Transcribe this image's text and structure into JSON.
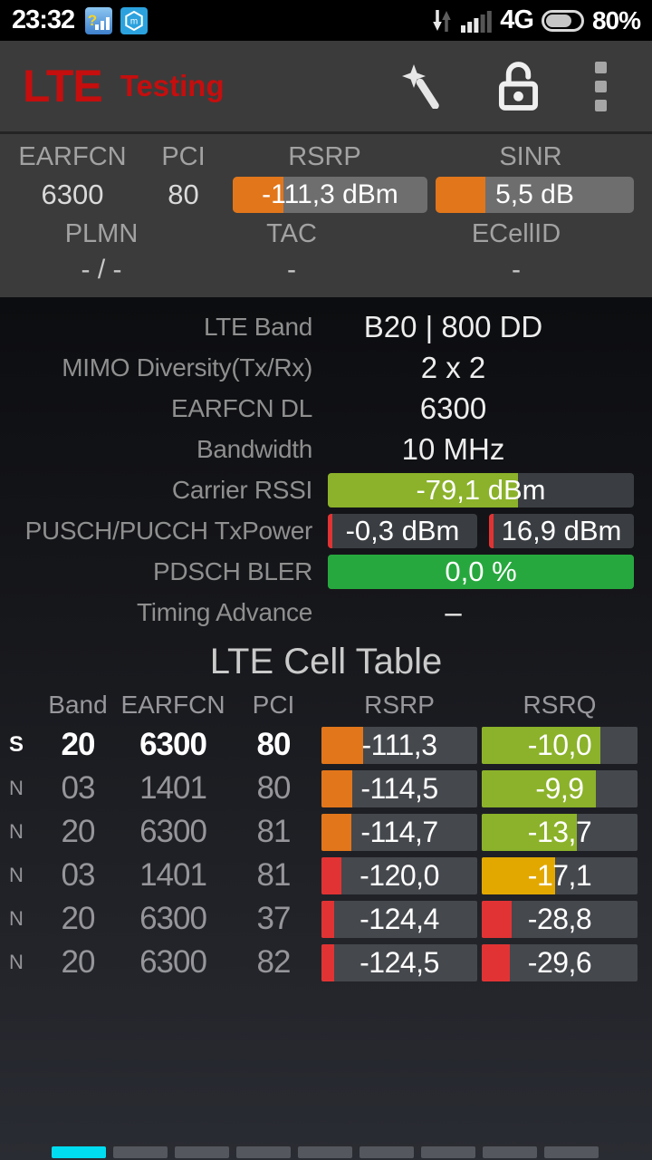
{
  "status_bar": {
    "time": "23:32",
    "network_type": "4G",
    "battery_percent": "80%",
    "battery_level": 76,
    "signal_bars_filled": 3,
    "signal_bars_total": 5,
    "notification_icons": [
      "network-cell-info",
      "mi-security"
    ]
  },
  "app_bar": {
    "title": "LTE",
    "subtitle": "Testing",
    "title_color": "#c50e0e",
    "actions": [
      "wand",
      "unlock",
      "overflow-menu"
    ]
  },
  "serving_panel": {
    "headers_row1": {
      "earfcn": "EARFCN",
      "pci": "PCI",
      "rsrp": "RSRP",
      "sinr": "SINR"
    },
    "earfcn": "6300",
    "pci": "80",
    "rsrp": {
      "text": "-111,3 dBm",
      "fill": 26,
      "color": "#e2761b"
    },
    "sinr": {
      "text": "5,5 dB",
      "fill": 25,
      "color": "#e2761b"
    },
    "headers_row2": {
      "plmn": "PLMN",
      "tac": "TAC",
      "ecellid": "ECellID"
    },
    "plmn": "- / -",
    "tac": "-",
    "ecellid": "-"
  },
  "details": {
    "rows": [
      {
        "label": "LTE Band",
        "type": "text",
        "value": "B20 | 800 DD"
      },
      {
        "label": "MIMO Diversity(Tx/Rx)",
        "type": "text",
        "value": "2 x 2"
      },
      {
        "label": "EARFCN DL",
        "type": "text",
        "value": "6300"
      },
      {
        "label": "Bandwidth",
        "type": "text",
        "value": "10 MHz"
      },
      {
        "label": "Carrier RSSI",
        "type": "bar",
        "value": "-79,1 dBm",
        "fill": 62,
        "color": "#8bb22a"
      },
      {
        "label": "PUSCH/PUCCH TxPower",
        "type": "dualbar",
        "values": [
          "-0,3 dBm",
          "16,9 dBm"
        ],
        "fills": [
          3,
          3
        ],
        "color": "#e23334"
      },
      {
        "label": "PDSCH BLER",
        "type": "bar",
        "value": "0,0 %",
        "fill": 100,
        "color": "#27a83e"
      },
      {
        "label": "Timing Advance",
        "type": "text",
        "value": "–"
      }
    ]
  },
  "cell_table": {
    "title": "LTE Cell Table",
    "headers": [
      "Band",
      "EARFCN",
      "PCI",
      "RSRP",
      "RSRQ"
    ],
    "rows": [
      {
        "flag": "S",
        "serving": true,
        "band": "20",
        "earfcn": "6300",
        "pci": "80",
        "rsrp": "-111,3",
        "rsrp_fill": 27,
        "rsrp_color": "#e2761b",
        "rsrq": "-10,0",
        "rsrq_fill": 76,
        "rsrq_color": "#8bb22a"
      },
      {
        "flag": "N",
        "serving": false,
        "band": "03",
        "earfcn": "1401",
        "pci": "80",
        "rsrp": "-114,5",
        "rsrp_fill": 20,
        "rsrp_color": "#e2761b",
        "rsrq": "-9,9",
        "rsrq_fill": 73,
        "rsrq_color": "#8bb22a"
      },
      {
        "flag": "N",
        "serving": false,
        "band": "20",
        "earfcn": "6300",
        "pci": "81",
        "rsrp": "-114,7",
        "rsrp_fill": 19,
        "rsrp_color": "#e2761b",
        "rsrq": "-13,7",
        "rsrq_fill": 61,
        "rsrq_color": "#8bb22a"
      },
      {
        "flag": "N",
        "serving": false,
        "band": "03",
        "earfcn": "1401",
        "pci": "81",
        "rsrp": "-120,0",
        "rsrp_fill": 13,
        "rsrp_color": "#e23334",
        "rsrq": "-17,1",
        "rsrq_fill": 47,
        "rsrq_color": "#e2a800"
      },
      {
        "flag": "N",
        "serving": false,
        "band": "20",
        "earfcn": "6300",
        "pci": "37",
        "rsrp": "-124,4",
        "rsrp_fill": 8,
        "rsrp_color": "#e23334",
        "rsrq": "-28,8",
        "rsrq_fill": 19,
        "rsrq_color": "#e23334"
      },
      {
        "flag": "N",
        "serving": false,
        "band": "20",
        "earfcn": "6300",
        "pci": "82",
        "rsrp": "-124,5",
        "rsrp_fill": 8,
        "rsrp_color": "#e23334",
        "rsrq": "-29,6",
        "rsrq_fill": 18,
        "rsrq_color": "#e23334"
      }
    ]
  },
  "pagination": {
    "count": 9,
    "active_index": 0,
    "active_color": "#00dcf0",
    "inactive_color": "#54575d"
  }
}
